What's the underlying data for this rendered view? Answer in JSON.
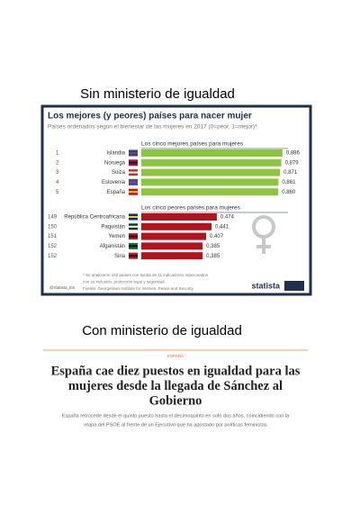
{
  "top_caption": "Sin ministerio de igualdad",
  "chart_data": {
    "type": "bar",
    "title": "Los mejores (y peores) países para nacer mujer",
    "subtitle": "Países ordenados según el bienestar de las mujeres en 2017 (0=peor, 1=mejor)*",
    "groups": [
      {
        "name": "Los cinco mejores países para mujeres",
        "color": "#8cc63f",
        "ranks": [
          1,
          2,
          3,
          4,
          5
        ],
        "categories": [
          "Islandia",
          "Noruega",
          "Suiza",
          "Eslovenia",
          "España"
        ],
        "values": [
          0.886,
          0.879,
          0.871,
          0.861,
          0.86
        ],
        "value_labels": [
          "0,886",
          "0,879",
          "0,871",
          "0,861",
          "0,860"
        ]
      },
      {
        "name": "Los cinco peores países para mujeres",
        "color": "#b5121b",
        "ranks": [
          149,
          150,
          151,
          152,
          152
        ],
        "categories": [
          "República Centroafricana",
          "Paquistán",
          "Yemen",
          "Afganistán",
          "Siria"
        ],
        "values": [
          0.474,
          0.441,
          0.407,
          0.385,
          0.385
        ],
        "value_labels": [
          "0,474",
          "0,441",
          "0,407",
          "0,385",
          "0,385"
        ]
      }
    ],
    "footnotes": [
      "* Se analizaron 152 países con ayuda de 11 indicadores relacionados",
      "con su inclusión, protección legal y seguridad.",
      "Fuente: Georgetown Institute for Women, Peace and Security"
    ],
    "handle": "@Statista_ES",
    "brand": "statista"
  },
  "bottom_caption": "Con ministerio de igualdad",
  "article": {
    "section": "ESPAÑA",
    "headline": [
      "España cae diez puestos en igualdad para las",
      "mujeres desde la llegada de Sánchez al",
      "Gobierno"
    ],
    "summary": [
      "España retrocede desde el quinto puesto hasta el decimoquinto en solo dos años, coincidiendo con la",
      "etapa del PSOE al frente de un Ejecutivo que ha apostado por políticas feministas"
    ]
  }
}
